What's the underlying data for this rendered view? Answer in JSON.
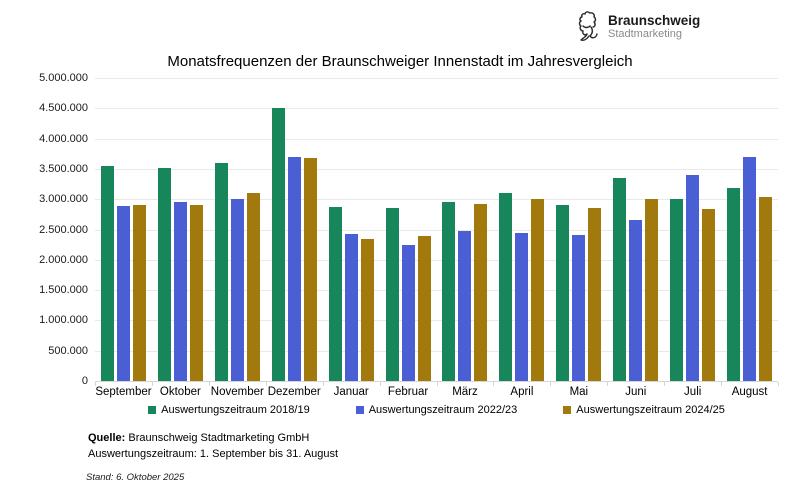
{
  "logo": {
    "line1": "Braunschweig",
    "line2": "Stadtmarketing"
  },
  "title": "Monatsfrequenzen der Braunschweiger Innenstadt im Jahresvergleich",
  "footer": {
    "source_label": "Quelle:",
    "source_text": " Braunschweig Stadtmarketing GmbH",
    "period_line": "Auswertungszeitraum: 1. September bis 31. August",
    "stand_line": "Stand: 6. Oktober 2025"
  },
  "chart_data": {
    "type": "bar",
    "title": "Monatsfrequenzen der Braunschweiger Innenstadt im Jahresvergleich",
    "categories": [
      "September",
      "Oktober",
      "November",
      "Dezember",
      "Januar",
      "Februar",
      "März",
      "April",
      "Mai",
      "Juni",
      "Juli",
      "August"
    ],
    "series": [
      {
        "name": "Auswertungszeitraum 2018/19",
        "color": "#17875B",
        "values": [
          3550000,
          3520000,
          3590000,
          4500000,
          2870000,
          2860000,
          2960000,
          3110000,
          2900000,
          3350000,
          3000000,
          3180000
        ]
      },
      {
        "name": "Auswertungszeitraum 2022/23",
        "color": "#4A5FD3",
        "values": [
          2880000,
          2950000,
          3000000,
          3700000,
          2420000,
          2250000,
          2480000,
          2450000,
          2410000,
          2650000,
          3400000,
          3700000
        ]
      },
      {
        "name": "Auswertungszeitraum 2024/25",
        "color": "#A2790D",
        "values": [
          2900000,
          2900000,
          3100000,
          3680000,
          2350000,
          2400000,
          2920000,
          3000000,
          2850000,
          3000000,
          2840000,
          3040000
        ]
      }
    ],
    "xlabel": "",
    "ylabel": "",
    "ylim": [
      0,
      5000000
    ],
    "ytick_step": 500000,
    "ytick_labels": [
      "5.000.000",
      "4.500.000",
      "4.000.000",
      "3.500.000",
      "3.000.000",
      "2.500.000",
      "2.000.000",
      "1.500.000",
      "1.000.000",
      "500.000",
      "0"
    ],
    "grid": true,
    "legend_position": "bottom"
  }
}
